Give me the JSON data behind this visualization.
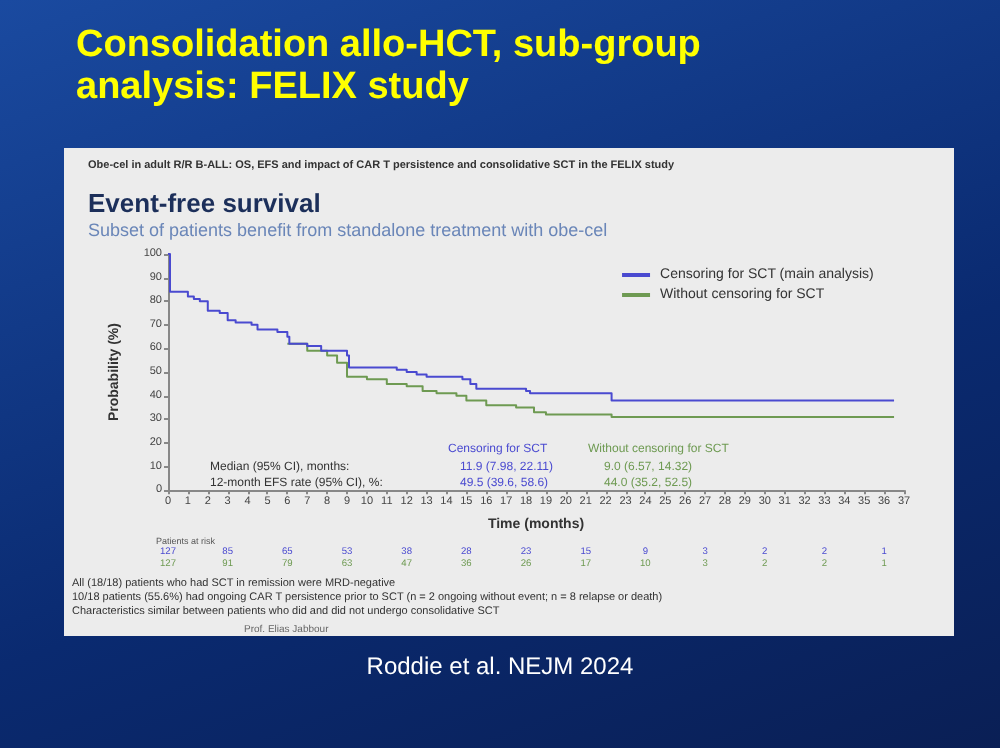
{
  "chart_data": {
    "type": "step",
    "title": "Consolidation allo-HCT, sub-group analysis: FELIX study",
    "subtitle": "Event-free survival",
    "xlabel": "Time (months)",
    "ylabel": "Probability (%)",
    "annotations": [
      "Obe-cel in adult R/R B-ALL: OS, EFS and impact of CAR T persistence and consolidative SCT in the FELIX study",
      "Subset of patients benefit from standalone treatment with obe-cel",
      "Censoring for SCT",
      "Without censoring for SCT",
      "Median (95% CI), months:",
      "11.9 (7.98, 22.11)",
      "9.0 (6.57, 14.32)",
      "12-month EFS rate (95% CI), %:",
      "49.5 (39.6, 58.6)",
      "44.0 (35.2, 52.5)",
      "Patients at risk",
      "127 85 65 53 38 28 23 15 9 3 2 2 1",
      "127 91 79 63 47 36 26 17 10 3 2 2 1",
      "All (18/18) patients who had SCT in remission were MRD-negative",
      "10/18 patients (55.6%) had ongoing CAR T persistence prior to SCT (n = 2 ongoing without event; n = 8 relapse or death)",
      "Characteristics similar between patients who did and did not undergo consolidative SCT",
      "Prof. Elias Jabbour",
      "Roddie et al. NEJM 2024"
    ],
    "series": [
      {
        "name": "Censoring for SCT (main analysis)",
        "color": "#4a4ad0",
        "x": [
          0,
          0.1,
          1,
          1.3,
          1.6,
          2,
          2.6,
          3,
          3.4,
          4.2,
          4.5,
          5.5,
          6,
          6.1,
          7,
          7.7,
          9,
          9.1,
          11.5,
          12,
          12.5,
          13,
          14.8,
          15.2,
          15.5,
          18,
          18.2,
          22.3,
          36.5
        ],
        "values": [
          100,
          84,
          82,
          81,
          80,
          76,
          75,
          72,
          71,
          70,
          68,
          67,
          65,
          62,
          61,
          59,
          57,
          52,
          51,
          50,
          49,
          48,
          47,
          45,
          43,
          42,
          41,
          38,
          38
        ]
      },
      {
        "name": "Without censoring for SCT",
        "color": "#6e9a52",
        "x": [
          6,
          7,
          8,
          8.5,
          9,
          10,
          11,
          12,
          12.8,
          13.5,
          14.5,
          15,
          16,
          17.5,
          18.4,
          19,
          22.3,
          36.5
        ],
        "values": [
          62,
          59,
          57,
          54,
          48,
          47,
          45,
          44,
          42,
          41,
          40,
          38,
          36,
          35,
          33,
          32,
          31,
          31
        ]
      }
    ],
    "xlim": [
      0,
      37
    ],
    "xticks": [
      0,
      1,
      2,
      3,
      4,
      5,
      6,
      7,
      8,
      9,
      10,
      11,
      12,
      13,
      14,
      15,
      16,
      17,
      18,
      19,
      20,
      21,
      22,
      23,
      24,
      25,
      26,
      27,
      28,
      29,
      30,
      31,
      32,
      33,
      34,
      35,
      36,
      37
    ],
    "ylim": [
      0,
      100
    ],
    "yticks": [
      0,
      10,
      20,
      30,
      40,
      50,
      60,
      70,
      80,
      90,
      100
    ],
    "grid": false,
    "legend": "top right",
    "line_style": "solid"
  }
}
